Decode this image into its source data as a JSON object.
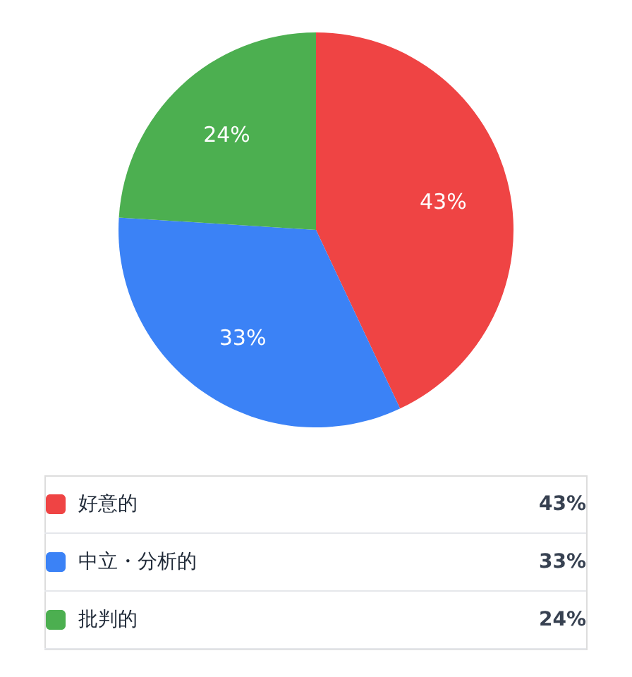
{
  "chart_data": {
    "type": "pie",
    "categories": [
      "好意的",
      "中立・分析的",
      "批判的"
    ],
    "values": [
      43,
      33,
      24
    ],
    "colors": [
      "#ef4444",
      "#3b82f6",
      "#4caf50"
    ],
    "value_labels": [
      "43%",
      "33%",
      "24%"
    ],
    "legend": "bottom"
  }
}
